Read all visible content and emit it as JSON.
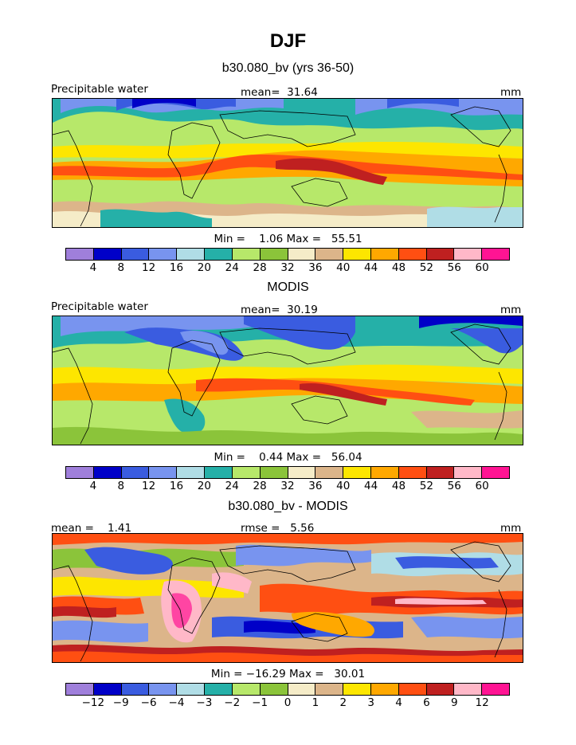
{
  "title": "DJF",
  "palette": [
    "#9f7fdb",
    "#0000c8",
    "#3a5ce0",
    "#7894ef",
    "#b0dde6",
    "#25b0a8",
    "#b7e86a",
    "#8bc43a",
    "#f5ecc8",
    "#dcb58a",
    "#fde600",
    "#ffa800",
    "#ff4f12",
    "#bf2020",
    "#ffb8c8",
    "#ff1493"
  ],
  "panels": [
    {
      "title": "b30.080_bv (yrs 36-50)",
      "left_label": "Precipitable water",
      "center_label": "mean=  31.64",
      "right_label": "mm",
      "minmax": "Min =    1.06 Max =   55.51",
      "chart_data": {
        "type": "heatmap",
        "variable": "Precipitable water",
        "units": "mm",
        "mean": 31.64,
        "min": 1.06,
        "max": 55.51,
        "colorbar_levels": [
          "4",
          "8",
          "12",
          "16",
          "20",
          "24",
          "28",
          "32",
          "36",
          "40",
          "44",
          "48",
          "52",
          "56",
          "60"
        ]
      }
    },
    {
      "title": "MODIS",
      "left_label": "Precipitable water",
      "center_label": "mean=  30.19",
      "right_label": "mm",
      "minmax": "Min =    0.44 Max =   56.04",
      "chart_data": {
        "type": "heatmap",
        "variable": "Precipitable water",
        "units": "mm",
        "mean": 30.19,
        "min": 0.44,
        "max": 56.04,
        "colorbar_levels": [
          "4",
          "8",
          "12",
          "16",
          "20",
          "24",
          "28",
          "32",
          "36",
          "40",
          "44",
          "48",
          "52",
          "56",
          "60"
        ]
      }
    },
    {
      "title": "b30.080_bv - MODIS",
      "left_label": "mean =    1.41",
      "center_label": "rmse =   5.56",
      "right_label": "mm",
      "minmax": "Min = −16.29 Max =   30.01",
      "chart_data": {
        "type": "heatmap",
        "units": "mm",
        "mean": 1.41,
        "rmse": 5.56,
        "min": -16.29,
        "max": 30.01,
        "colorbar_levels": [
          "−12",
          "−9",
          "−6",
          "−4",
          "−3",
          "−2",
          "−1",
          "0",
          "1",
          "2",
          "3",
          "4",
          "6",
          "9",
          "12"
        ]
      }
    }
  ]
}
